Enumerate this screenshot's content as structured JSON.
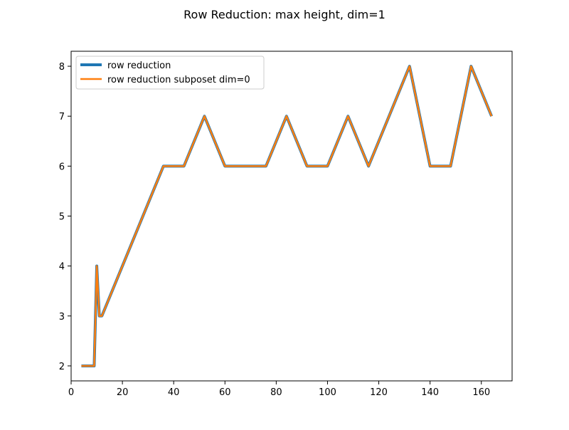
{
  "chart_data": {
    "type": "line",
    "title": "Row Reduction: max height, dim=1",
    "xlabel": "",
    "ylabel": "",
    "xlim": [
      0,
      172
    ],
    "ylim": [
      1.7,
      8.3
    ],
    "xticks": [
      0,
      20,
      40,
      60,
      80,
      100,
      120,
      140,
      160
    ],
    "yticks": [
      2,
      3,
      4,
      5,
      6,
      7,
      8
    ],
    "grid": false,
    "legend_position": "upper-left",
    "series": [
      {
        "name": "row reduction",
        "color": "#1f77b4",
        "x": [
          4,
          6,
          8,
          9,
          10,
          11,
          12,
          36,
          44,
          52,
          60,
          68,
          76,
          84,
          92,
          100,
          108,
          116,
          124,
          132,
          140,
          148,
          156,
          164
        ],
        "y": [
          2,
          2,
          2,
          2,
          4,
          3,
          3,
          6,
          6,
          7,
          6,
          6,
          6,
          7,
          6,
          6,
          7,
          6,
          7,
          8,
          6,
          6,
          8,
          7
        ]
      },
      {
        "name": "row reduction subposet dim=0",
        "color": "#ff7f0e",
        "x": [
          4,
          6,
          8,
          9,
          10,
          11,
          12,
          36,
          44,
          52,
          60,
          68,
          76,
          84,
          92,
          100,
          108,
          116,
          124,
          132,
          140,
          148,
          156,
          164
        ],
        "y": [
          2,
          2,
          2,
          2,
          4,
          3,
          3,
          6,
          6,
          7,
          6,
          6,
          6,
          7,
          6,
          6,
          7,
          6,
          7,
          8,
          6,
          6,
          8,
          7
        ]
      }
    ]
  }
}
